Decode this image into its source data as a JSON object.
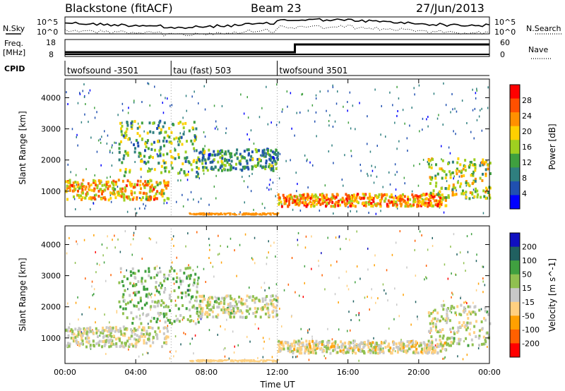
{
  "header": {
    "station": "Blackstone (fitACF)",
    "beam": "Beam 23",
    "date": "27/Jun/2013"
  },
  "strips": {
    "nsky_label": "N.Sky",
    "nsearch_label": "N.Search",
    "freq_label_1": "Freq.",
    "freq_label_2": "[MHz]",
    "nave_label": "Nave",
    "cpid_label": "CPID",
    "noise_ticks": [
      "10^5",
      "10^0"
    ],
    "freq_ticks": [
      "18",
      "8"
    ],
    "nave_ticks": [
      "60",
      "0"
    ]
  },
  "cpid_segments": [
    {
      "label": "twofsound -3501",
      "start_h": 0
    },
    {
      "label": "tau (fast) 503",
      "start_h": 6
    },
    {
      "label": "twofsound 3501",
      "start_h": 12
    }
  ],
  "colors": {
    "power_scale": [
      "#0000ff",
      "#2050b0",
      "#2f7f7f",
      "#3fa03f",
      "#9fd020",
      "#ffd000",
      "#ff9000",
      "#ff5000",
      "#ff0000"
    ],
    "velocity_scale": [
      "#ff0000",
      "#ff6000",
      "#ffa000",
      "#ffd080",
      "#c8c8c8",
      "#90c050",
      "#40a040",
      "#206060",
      "#1010c0"
    ]
  },
  "chart_data": [
    {
      "type": "heatmap",
      "quantity": "Power",
      "ylabel": "Slant Range [km]",
      "xlabel": "",
      "ylim": [
        180,
        4600
      ],
      "xlim": [
        0,
        24
      ],
      "yticks": [
        "1000",
        "2000",
        "3000",
        "4000"
      ],
      "xticks": [
        "00:00",
        "04:00",
        "08:00",
        "12:00",
        "16:00",
        "20:00",
        "00:00"
      ],
      "colorbar": {
        "label": "Power [dB]",
        "ticks": [
          "4",
          "8",
          "12",
          "16",
          "20",
          "24",
          "28"
        ]
      },
      "echo_bands": [
        {
          "t0": 0.0,
          "t1": 5.8,
          "r0": 750,
          "r1": 1400,
          "val": 20
        },
        {
          "t0": 3.0,
          "t1": 7.5,
          "r0": 1500,
          "r1": 3300,
          "val": 12
        },
        {
          "t0": 7.5,
          "t1": 12.0,
          "r0": 1700,
          "r1": 2400,
          "val": 10
        },
        {
          "t0": 12.0,
          "t1": 21.5,
          "r0": 550,
          "r1": 950,
          "val": 22
        },
        {
          "t0": 20.5,
          "t1": 24.0,
          "r0": 800,
          "r1": 2100,
          "val": 16
        }
      ]
    },
    {
      "type": "heatmap",
      "quantity": "Velocity",
      "ylabel": "Slant Range [km]",
      "xlabel": "Time UT",
      "ylim": [
        180,
        4600
      ],
      "xlim": [
        0,
        24
      ],
      "yticks": [
        "1000",
        "2000",
        "3000",
        "4000"
      ],
      "xticks": [
        "00:00",
        "04:00",
        "08:00",
        "12:00",
        "16:00",
        "20:00",
        "00:00"
      ],
      "colorbar": {
        "label": "Velocity [m s^-1]",
        "ticks": [
          "200",
          "100",
          "50",
          "15",
          "-15",
          "-50",
          "-100",
          "-200"
        ]
      },
      "echo_bands": [
        {
          "t0": 0.0,
          "t1": 5.8,
          "r0": 750,
          "r1": 1400,
          "val": 0
        },
        {
          "t0": 3.0,
          "t1": 7.5,
          "r0": 1500,
          "r1": 3300,
          "val": 60
        },
        {
          "t0": 7.5,
          "t1": 12.0,
          "r0": 1700,
          "r1": 2400,
          "val": 10
        },
        {
          "t0": 12.0,
          "t1": 21.5,
          "r0": 550,
          "r1": 950,
          "val": -20
        },
        {
          "t0": 20.5,
          "t1": 24.0,
          "r0": 800,
          "r1": 2100,
          "val": 5
        }
      ]
    }
  ]
}
